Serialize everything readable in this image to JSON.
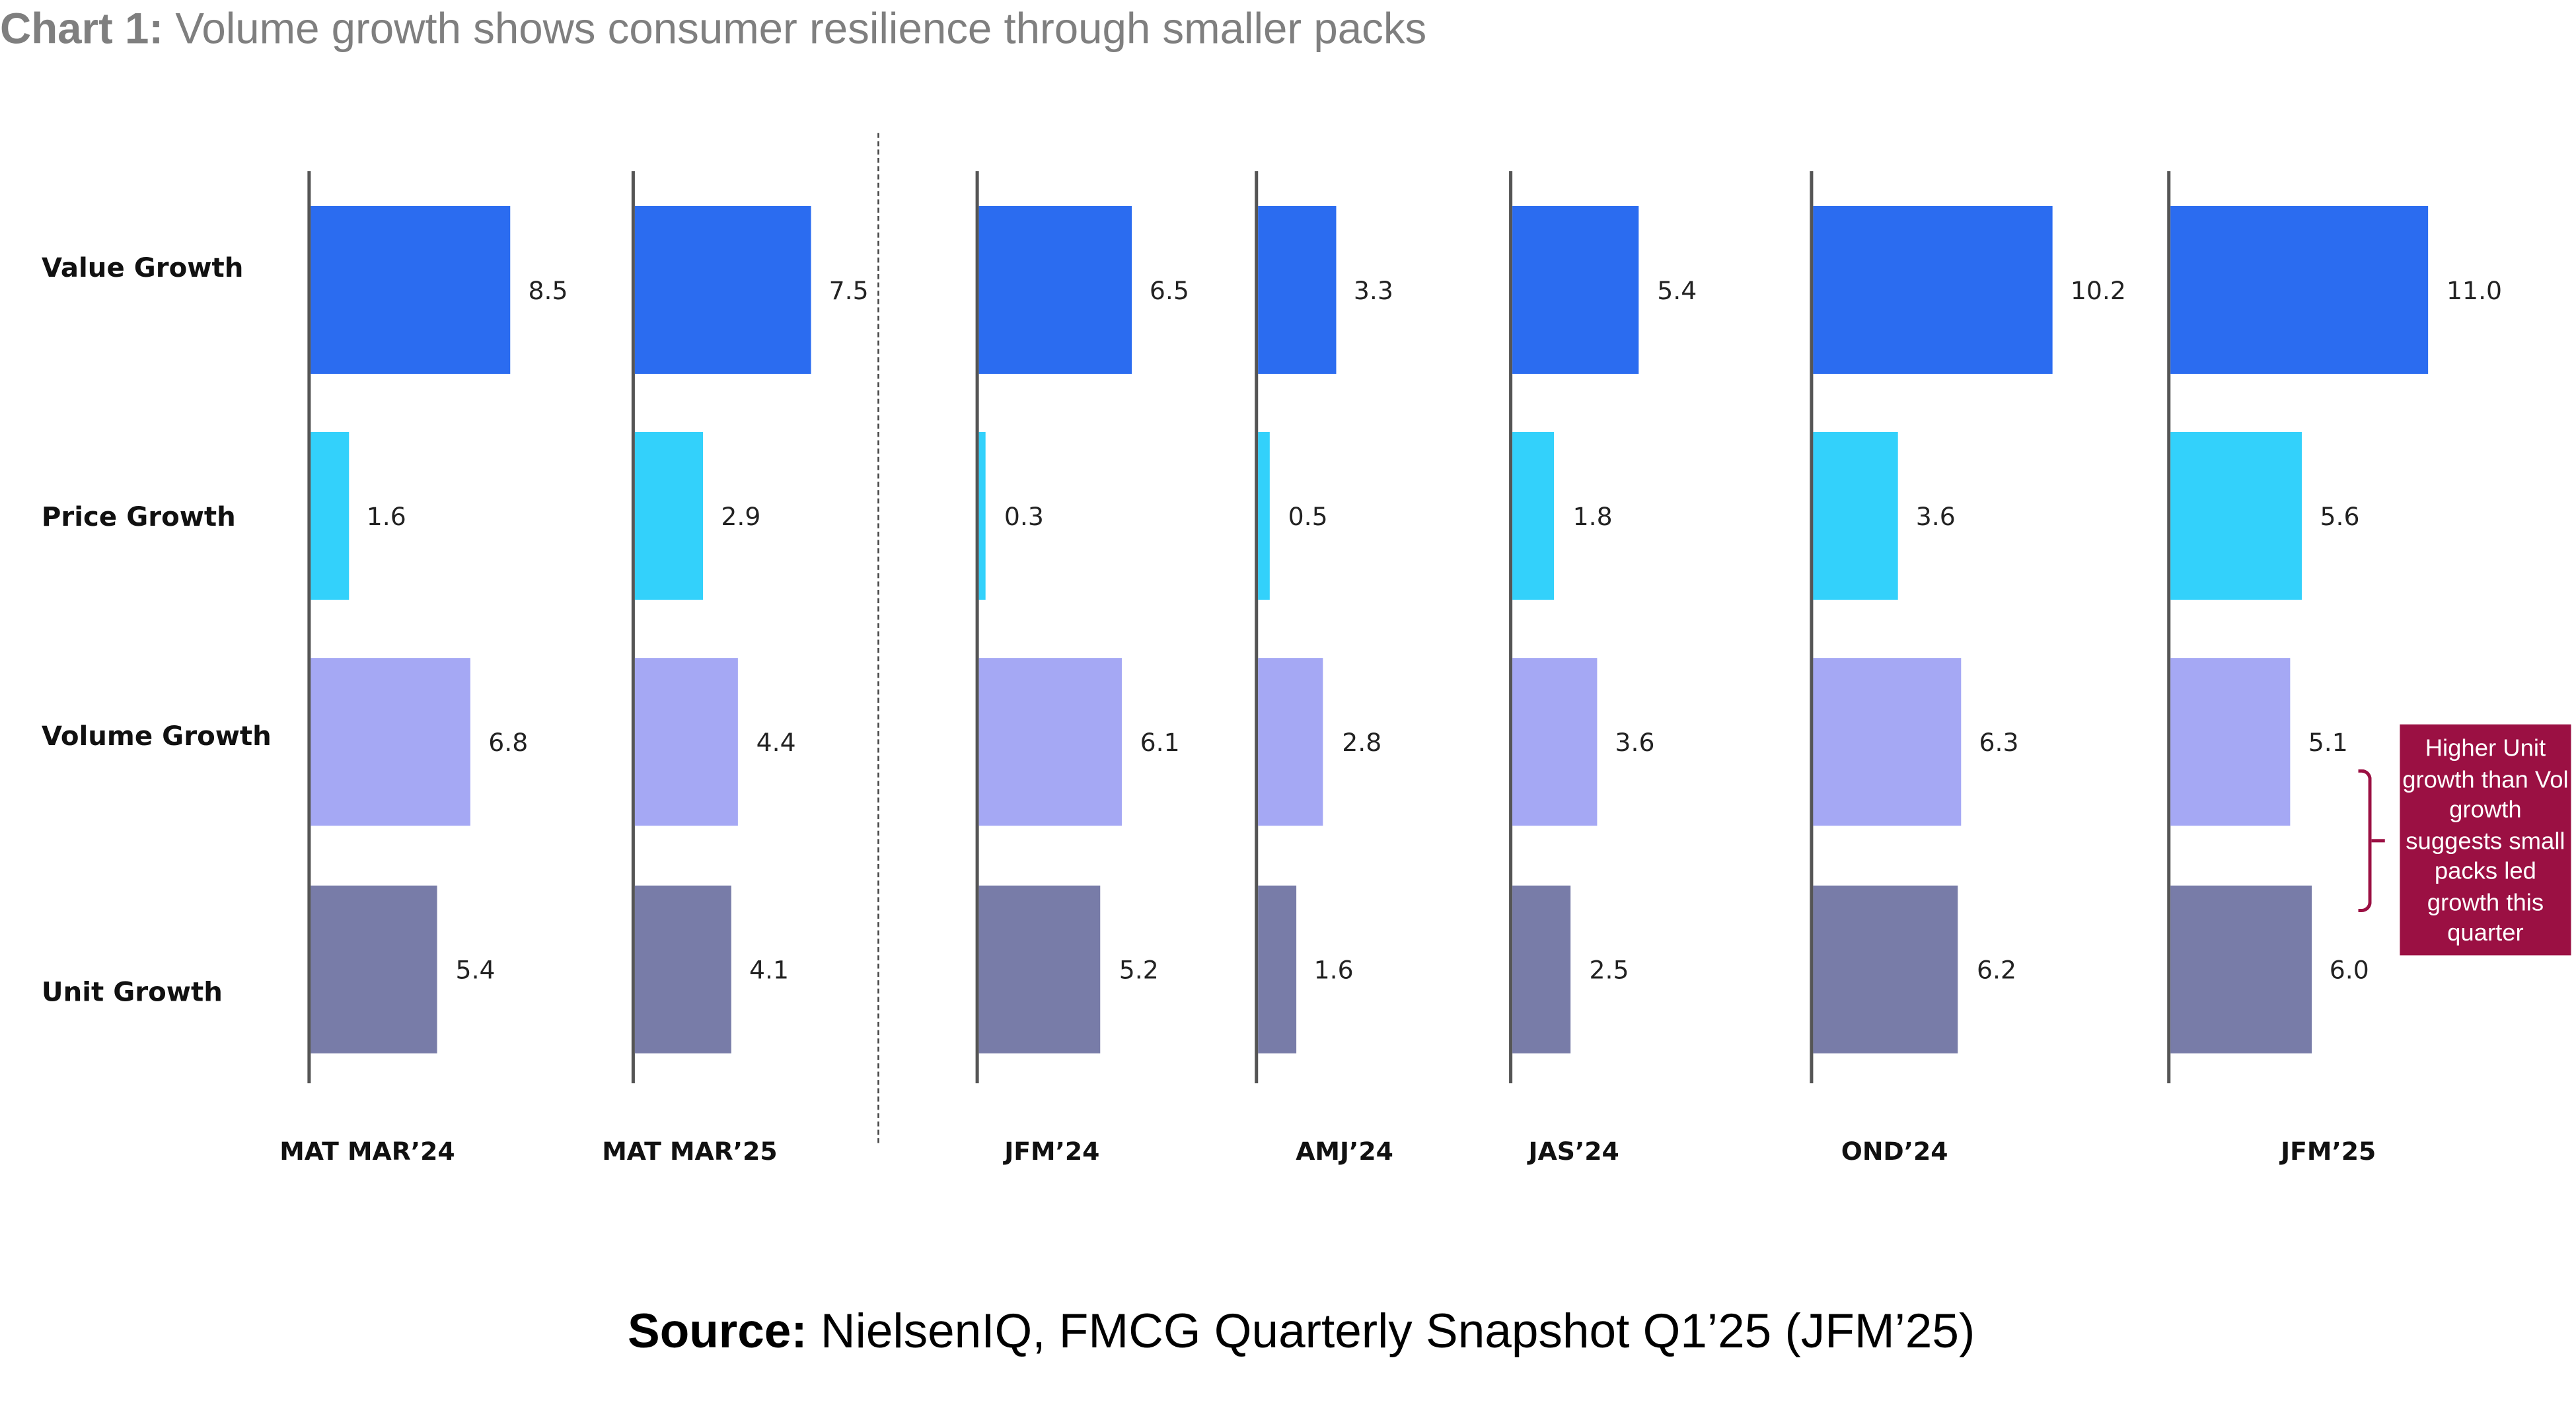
{
  "title": {
    "prefix": "Chart 1:",
    "text": " Volume growth shows consumer resilience through smaller packs"
  },
  "source": {
    "prefix": "Source:",
    "text": " NielsenIQ, FMCG Quarterly Snapshot Q1’25 (JFM’25)"
  },
  "annotation": "Higher Unit growth than Vol growth suggests small packs led growth this quarter",
  "colors": {
    "Value Growth": "#2b6cf0",
    "Price Growth": "#33d1fb",
    "Volume Growth": "#a5a8f4",
    "Unit Growth": "#787ca8",
    "annotation": "#9b1043"
  },
  "chart_data": {
    "type": "bar",
    "orientation": "horizontal",
    "title": "Chart 1: Volume growth shows consumer resilience through smaller packs",
    "metrics": [
      "Value Growth",
      "Price Growth",
      "Volume Growth",
      "Unit Growth"
    ],
    "categories": [
      "MAT MAR’24",
      "MAT MAR’25",
      "JFM’24",
      "AMJ’24",
      "JAS’24",
      "OND’24",
      "JFM’25"
    ],
    "series": [
      {
        "name": "Value Growth",
        "values": [
          8.5,
          7.5,
          6.5,
          3.3,
          5.4,
          10.2,
          11.0
        ]
      },
      {
        "name": "Price Growth",
        "values": [
          1.6,
          2.9,
          0.3,
          0.5,
          1.8,
          3.6,
          5.6
        ]
      },
      {
        "name": "Volume Growth",
        "values": [
          6.8,
          4.4,
          6.1,
          2.8,
          3.6,
          6.3,
          5.1
        ]
      },
      {
        "name": "Unit Growth",
        "values": [
          5.4,
          4.1,
          5.2,
          1.6,
          2.5,
          6.2,
          6.0
        ]
      }
    ],
    "separator_after": "MAT MAR’25",
    "grid": false
  }
}
